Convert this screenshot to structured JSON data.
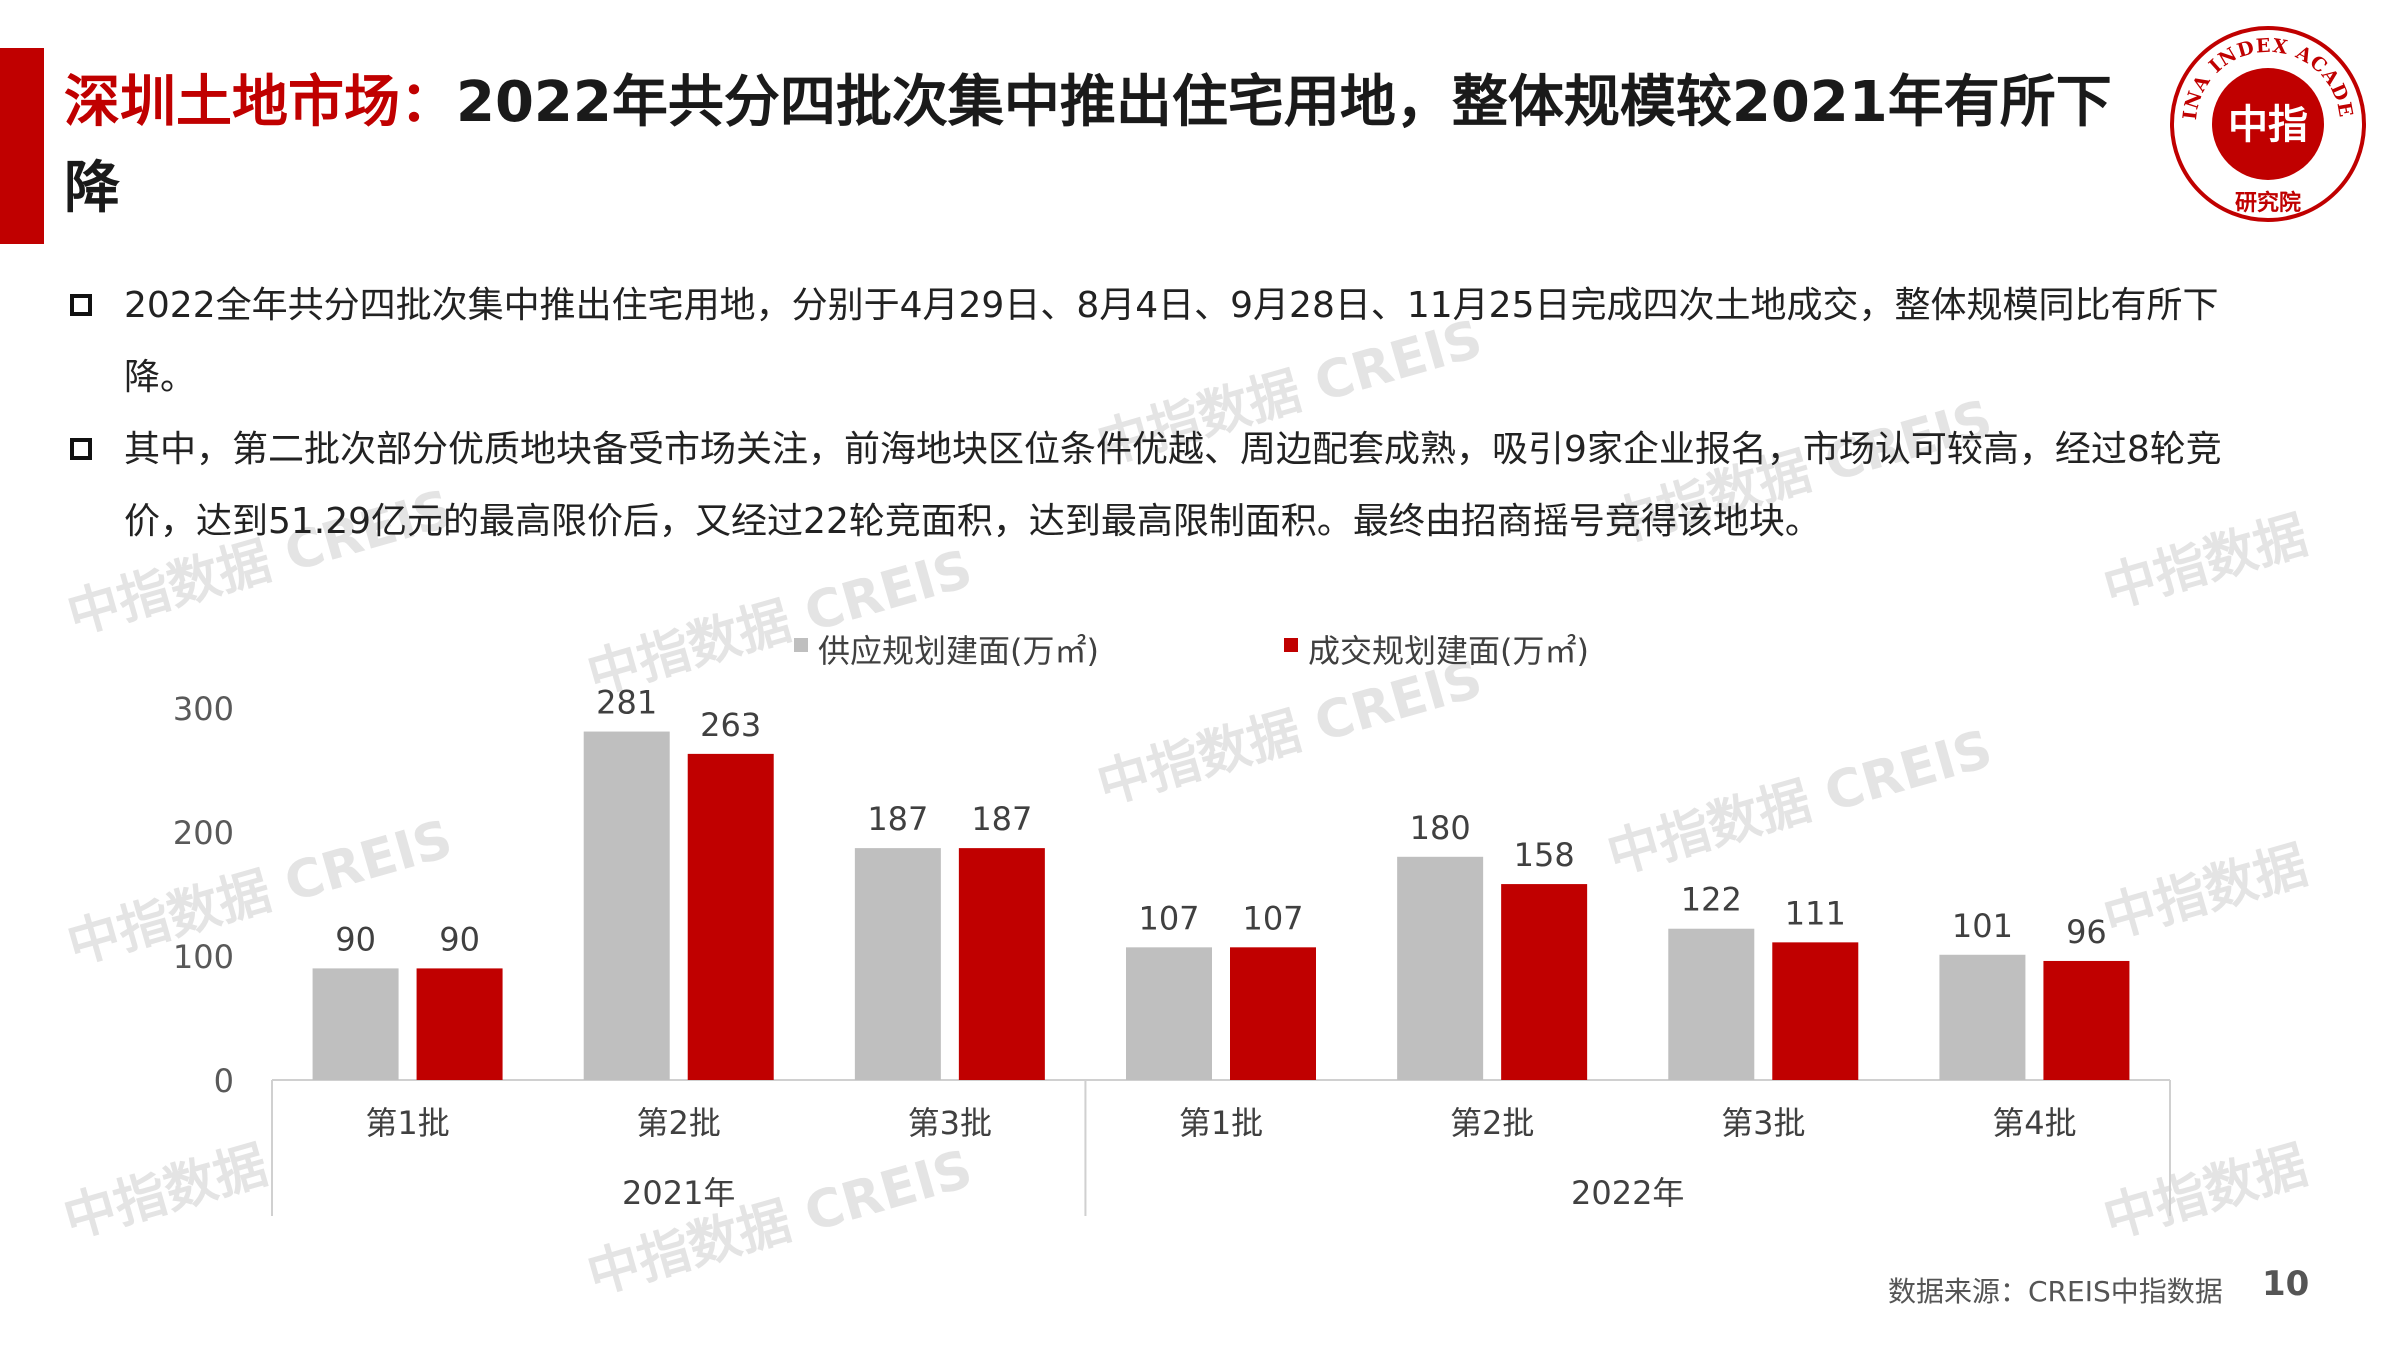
{
  "title": {
    "highlight": "深圳土地市场：",
    "rest": "2022年共分四批次集中推出住宅用地，整体规模较2021年有所下降"
  },
  "logo": {
    "arc_text": "CHINA INDEX ACADEMY",
    "center_text": "中指",
    "bottom_text": "研究院",
    "color": "#c00000"
  },
  "bullets": [
    "2022全年共分四批次集中推出住宅用地，分别于4月29日、8月4日、9月28日、11月25日完成四次土地成交，整体规模同比有所下降。",
    "其中，第二批次部分优质地块备受市场关注，前海地块区位条件优越、周边配套成熟，吸引9家企业报名，市场认可较高，经过8轮竞价，达到51.29亿元的最高限价后，又经过22轮竞面积，达到最高限制面积。最终由招商摇号竞得该地块。"
  ],
  "chart_data": {
    "type": "bar",
    "categories": [
      "第1批",
      "第2批",
      "第3批",
      "第1批",
      "第2批",
      "第3批",
      "第4批"
    ],
    "groups": [
      {
        "label": "2021年",
        "count": 3
      },
      {
        "label": "2022年",
        "count": 4
      }
    ],
    "series": [
      {
        "name": "供应规划建面(万㎡)",
        "values": [
          90,
          281,
          187,
          107,
          180,
          122,
          101
        ],
        "color": "#bfbfbf"
      },
      {
        "name": "成交规划建面(万㎡)",
        "values": [
          90,
          263,
          187,
          107,
          158,
          111,
          96
        ],
        "color": "#c00000"
      }
    ],
    "yticks": [
      0,
      100,
      200,
      300
    ],
    "ylim": [
      0,
      300
    ],
    "legend_position": "top",
    "grid": false,
    "data_labels": true
  },
  "watermark": {
    "text_cn": "中指数据",
    "text_en": "CREIS"
  },
  "footer": {
    "source": "数据来源：CREIS中指数据",
    "page": "10"
  }
}
